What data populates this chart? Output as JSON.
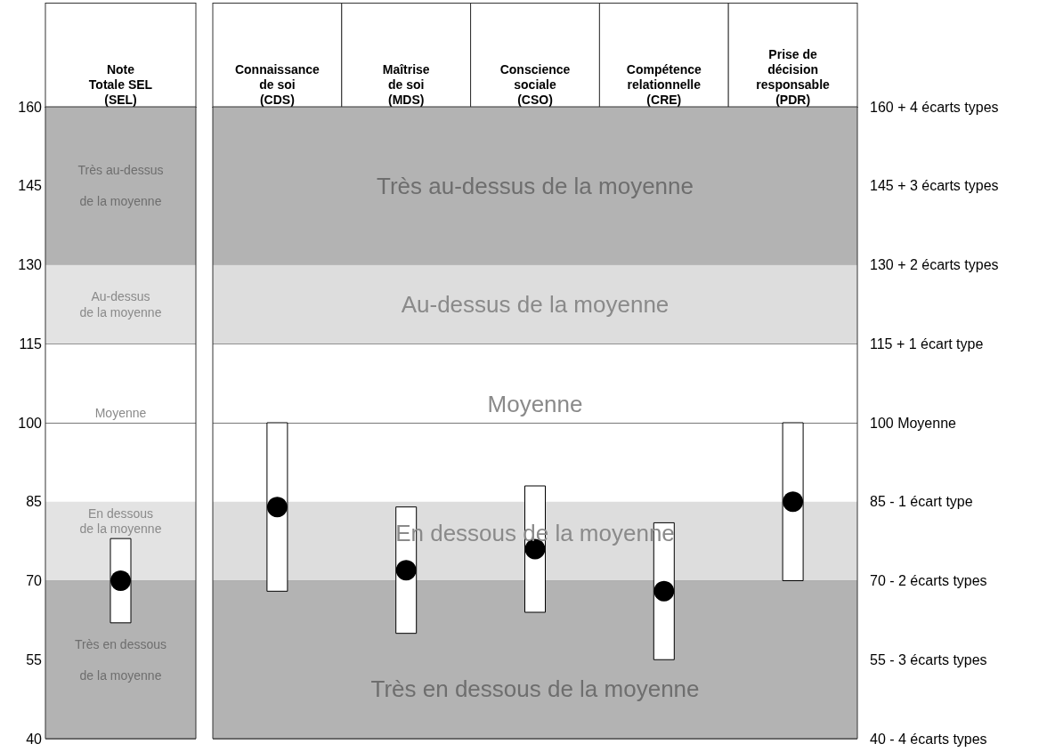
{
  "chart_data": [
    {
      "type": "bar",
      "categories": [
        "Note\nTotale SEL\n(SEL)"
      ],
      "series": [
        {
          "color": "#ffffff",
          "base": [
            62
          ],
          "values": [
            16
          ]
        },
        {
          "type": "scatter",
          "color": "#000000",
          "x": [
            "Note\nTotale SEL\n(SEL)"
          ],
          "values": [
            70
          ]
        }
      ],
      "ylim": [
        40,
        160
      ],
      "yticks": [
        40,
        55,
        70,
        85,
        100,
        115,
        130,
        145,
        160
      ],
      "grid": "y",
      "annotations": [
        "Moyenne"
      ],
      "bands": [
        {
          "axis": "y",
          "from": 130,
          "to": 160,
          "label": "Très au-dessus\n\nde la moyenne",
          "color": "#b3b3b3"
        },
        {
          "axis": "y",
          "from": 115,
          "to": 130,
          "label": "Au-dessus\nde la moyenne",
          "color": "#e3e3e3"
        },
        {
          "axis": "y",
          "from": 70,
          "to": 85,
          "label": "En dessous\nde la moyenne",
          "color": "#e3e3e3"
        },
        {
          "axis": "y",
          "from": 40,
          "to": 70,
          "label": "Très en dessous\n\nde la moyenne",
          "color": "#b3b3b3"
        }
      ]
    },
    {
      "type": "bar",
      "categories": [
        "Connaissance\nde soi\n(CDS)",
        "Maîtrise\nde soi\n(MDS)",
        "Conscience\nsociale\n(CSO)",
        "Compétence\nrelationnelle\n(CRE)",
        "Prise de\ndécision\nresponsable\n(PDR)"
      ],
      "series": [
        {
          "color": "#ffffff",
          "base": [
            68,
            60,
            64,
            55,
            70
          ],
          "values": [
            32,
            24,
            24,
            26,
            30
          ]
        },
        {
          "type": "scatter",
          "color": "#000000",
          "x": [
            "Connaissance\nde soi\n(CDS)",
            "Maîtrise\nde soi\n(MDS)",
            "Conscience\nsociale\n(CSO)",
            "Compétence\nrelationnelle\n(CRE)",
            "Prise de\ndécision\nresponsable\n(PDR)"
          ],
          "values": [
            84,
            72,
            76,
            68,
            85
          ]
        }
      ],
      "ylim": [
        40,
        160
      ],
      "yticks": [
        40,
        55,
        70,
        85,
        100,
        115,
        130,
        145,
        160
      ],
      "tick_labels": "x",
      "grid": "y",
      "annotations": [
        "Moyenne",
        "160 + 4 écarts types",
        "145 + 3 écarts types",
        "130 + 2 écarts types",
        "115 + 1 écart type",
        "100 Moyenne",
        "85 - 1 écart type",
        "70 - 2 écarts types",
        "55 - 3 écarts types",
        "40 - 4 écarts types"
      ],
      "bands": [
        {
          "axis": "y",
          "from": 130,
          "to": 160,
          "label": "Très au-dessus de la moyenne",
          "color": "#b3b3b3"
        },
        {
          "axis": "y",
          "from": 115,
          "to": 130,
          "label": "Au-dessus de la moyenne",
          "color": "#dddddd"
        },
        {
          "axis": "y",
          "from": 70,
          "to": 85,
          "label": "En dessous de la moyenne",
          "color": "#dddddd"
        },
        {
          "axis": "y",
          "from": 40,
          "to": 70,
          "label": "Très en dessous de la moyenne",
          "color": "#b3b3b3"
        }
      ]
    }
  ]
}
